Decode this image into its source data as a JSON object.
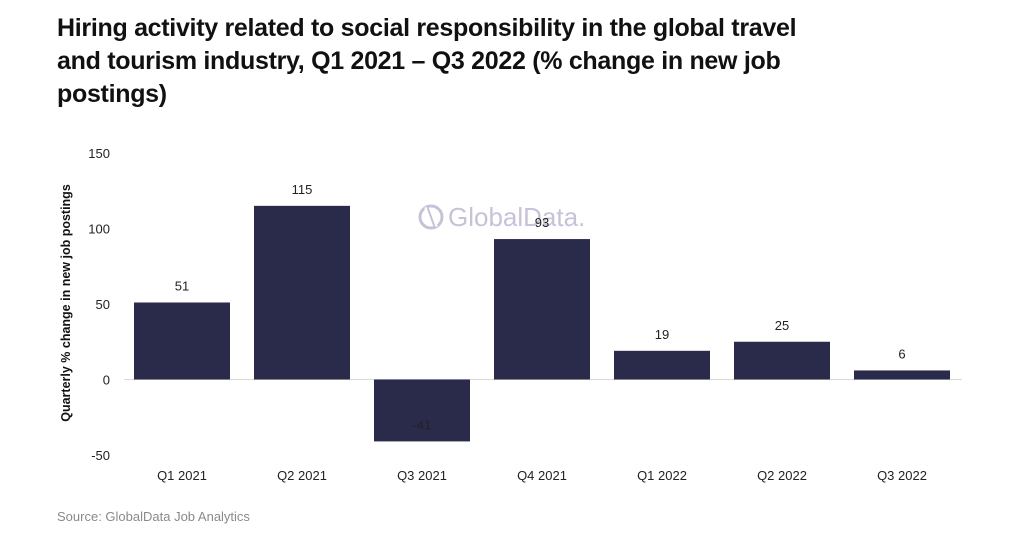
{
  "chart_data": {
    "type": "bar",
    "title": "Hiring activity related to social responsibility in the global travel and tourism industry, Q1 2021 – Q3 2022 (% change in new job postings)",
    "xlabel": "",
    "ylabel": "Quarterly % change in new job postings",
    "categories": [
      "Q1 2021",
      "Q2 2021",
      "Q3 2021",
      "Q4 2021",
      "Q1 2022",
      "Q2 2022",
      "Q3 2022"
    ],
    "values": [
      51,
      115,
      -41,
      93,
      19,
      25,
      6
    ],
    "ylim": [
      -50,
      150
    ],
    "yticks": [
      150,
      100,
      50,
      0,
      -50
    ],
    "grid": false,
    "legend": "none",
    "bar_color": "#2a2a4a",
    "watermark": "GlobalData.",
    "source": "Source: GlobalData Job Analytics"
  }
}
